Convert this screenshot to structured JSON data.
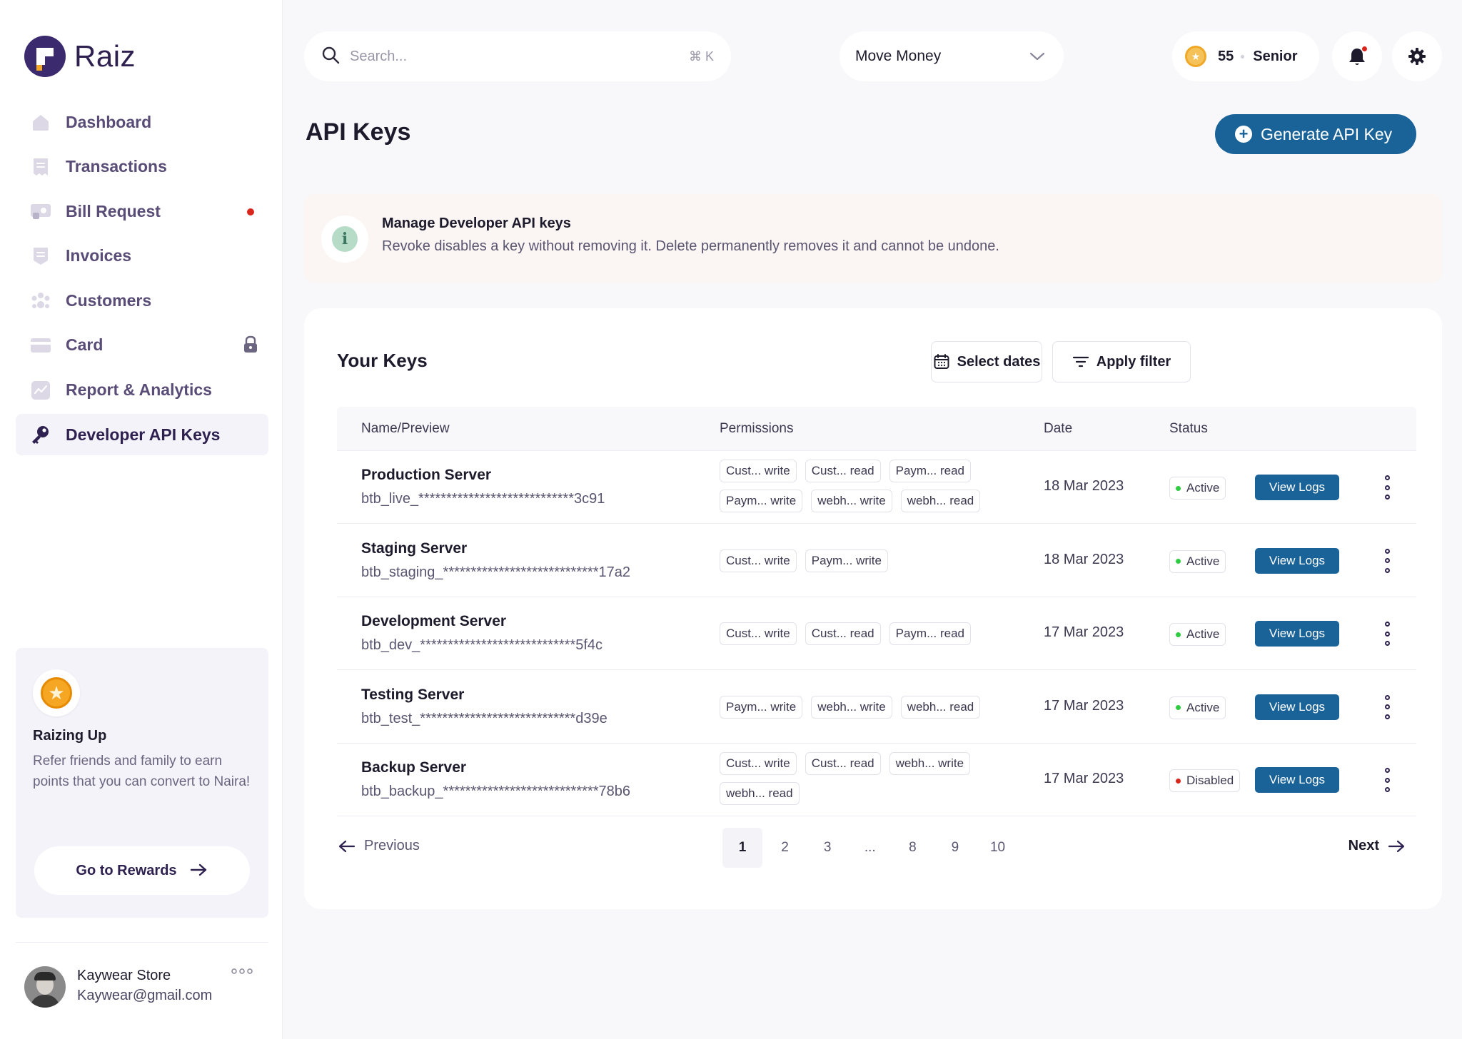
{
  "app": {
    "name": "Raiz"
  },
  "sidebar": {
    "items": [
      {
        "label": "Dashboard",
        "icon": "home-icon"
      },
      {
        "label": "Transactions",
        "icon": "receipt-icon"
      },
      {
        "label": "Bill Request",
        "icon": "bill-icon",
        "notification": true
      },
      {
        "label": "Invoices",
        "icon": "invoice-icon"
      },
      {
        "label": "Customers",
        "icon": "customers-icon"
      },
      {
        "label": "Card",
        "icon": "card-icon",
        "locked": true
      },
      {
        "label": "Report & Analytics",
        "icon": "analytics-icon"
      },
      {
        "label": "Developer API Keys",
        "icon": "key-icon",
        "active": true
      }
    ],
    "promo": {
      "title": "Raizing Up",
      "text": "Refer friends and family to earn points that you can convert to Naira!",
      "button": "Go to Rewards"
    },
    "user": {
      "name": "Kaywear Store",
      "email": "Kaywear@gmail.com"
    }
  },
  "topbar": {
    "search_placeholder": "Search...",
    "search_shortcut": "⌘ K",
    "move_money": "Move Money",
    "points": "55",
    "rank": "Senior"
  },
  "page": {
    "title": "API Keys",
    "generate_button": "Generate API Key"
  },
  "info": {
    "title": "Manage Developer API keys",
    "text": "Revoke disables a key without removing it. Delete permanently removes it and cannot be undone."
  },
  "keys": {
    "title": "Your Keys",
    "select_dates": "Select dates",
    "apply_filter": "Apply filter",
    "columns": {
      "name": "Name/Preview",
      "permissions": "Permissions",
      "date": "Date",
      "status": "Status"
    },
    "view_logs_label": "View Logs",
    "rows": [
      {
        "name": "Production Server",
        "key": "btb_live_****************************3c91",
        "permissions": [
          "Cust... write",
          "Cust... read",
          "Paym... read",
          "Paym... write",
          "webh... write",
          "webh... read"
        ],
        "date": "18 Mar 2023",
        "status": "Active"
      },
      {
        "name": "Staging Server",
        "key": "btb_staging_****************************17a2",
        "permissions": [
          "Cust... write",
          "Paym... write"
        ],
        "date": "18 Mar 2023",
        "status": "Active"
      },
      {
        "name": "Development Server",
        "key": "btb_dev_****************************5f4c",
        "permissions": [
          "Cust... write",
          "Cust... read",
          "Paym... read"
        ],
        "date": "17 Mar 2023",
        "status": "Active"
      },
      {
        "name": "Testing Server",
        "key": "btb_test_****************************d39e",
        "permissions": [
          "Paym... write",
          "webh... write",
          "webh... read"
        ],
        "date": "17 Mar 2023",
        "status": "Active"
      },
      {
        "name": "Backup Server",
        "key": "btb_backup_****************************78b6",
        "permissions": [
          "Cust... write",
          "Cust... read",
          "webh... write",
          "webh... read"
        ],
        "date": "17 Mar 2023",
        "status": "Disabled"
      }
    ],
    "status_colors": {
      "Active": "#2ecc40",
      "Disabled": "#d9261c"
    }
  },
  "pagination": {
    "previous": "Previous",
    "next": "Next",
    "pages": [
      "1",
      "2",
      "3",
      "...",
      "8",
      "9",
      "10"
    ],
    "current": "1"
  },
  "colors": {
    "brand": "#2e2150",
    "accent_blue": "#1a6399",
    "notification_red": "#d9261c"
  }
}
